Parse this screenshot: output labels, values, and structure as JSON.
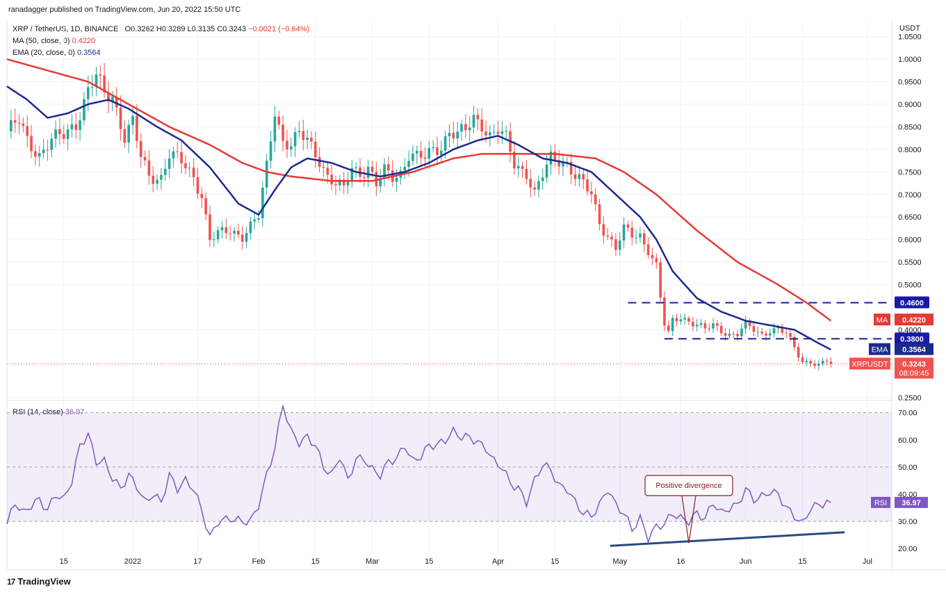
{
  "header": {
    "publisher": "ranadagger published on TradingView.com, Jun 20, 2022 15:50 UTC",
    "symbol": "XRP / TetherUS, 1D, BINANCE",
    "ohlc": {
      "o": "O0.3262",
      "h": "H0.3289",
      "l": "L0.3135",
      "c": "C0.3243",
      "chg": "−0.0021 (−0.64%)"
    },
    "ma_label": "MA (50, close, 0)",
    "ma_value": "0.4220",
    "ema_label": "EMA (20, close, 0)",
    "ema_value": "0.3564",
    "rsi_label": "RSI (14, close)",
    "rsi_value": "36.97"
  },
  "brand": {
    "name": "TradingView",
    "icon": "tradingview-logo-icon"
  },
  "colors": {
    "up": "#26a69a",
    "down": "#ef5350",
    "ma": "#e53935",
    "ema": "#1a2a8c",
    "rsi": "#7e57c2",
    "rsi_band": "rgba(126,87,194,0.10)",
    "level_line": "#1a1aa8",
    "trend_line": "#2a4a7f",
    "price_dot": "#e53935",
    "annotation": "#8b1a1a"
  },
  "chart_data": [
    {
      "type": "candlestick",
      "title": "XRP / TetherUS, 1D, BINANCE",
      "currency_label": "USDT",
      "ylim": [
        0.245,
        1.085
      ],
      "y_ticks": [
        "1.0500",
        "1.0000",
        "0.9500",
        "0.9000",
        "0.8500",
        "0.8000",
        "0.7500",
        "0.7000",
        "0.6500",
        "0.6000",
        "0.5500",
        "0.5000",
        "0.4000",
        "0.2500"
      ],
      "x_tick_labels": [
        {
          "label": "15",
          "day": 14
        },
        {
          "label": "2022",
          "day": 31
        },
        {
          "label": "17",
          "day": 47
        },
        {
          "label": "Feb",
          "day": 62
        },
        {
          "label": "15",
          "day": 76
        },
        {
          "label": "Mar",
          "day": 90
        },
        {
          "label": "15",
          "day": 104
        },
        {
          "label": "Apr",
          "day": 121
        },
        {
          "label": "15",
          "day": 135
        },
        {
          "label": "May",
          "day": 151
        },
        {
          "label": "16",
          "day": 166
        },
        {
          "label": "Jun",
          "day": 182
        },
        {
          "label": "15",
          "day": 196
        },
        {
          "label": "Jul",
          "day": 212
        }
      ],
      "x_range_days": [
        0,
        218
      ],
      "anchors": {
        "close": [
          [
            0,
            0.84
          ],
          [
            3,
            0.86
          ],
          [
            5,
            0.82
          ],
          [
            8,
            0.79
          ],
          [
            11,
            0.82
          ],
          [
            14,
            0.83
          ],
          [
            17,
            0.86
          ],
          [
            20,
            0.93
          ],
          [
            22,
            0.96
          ],
          [
            24,
            0.92
          ],
          [
            26,
            0.92
          ],
          [
            29,
            0.83
          ],
          [
            31,
            0.86
          ],
          [
            33,
            0.78
          ],
          [
            35,
            0.74
          ],
          [
            38,
            0.74
          ],
          [
            40,
            0.79
          ],
          [
            43,
            0.77
          ],
          [
            46,
            0.74
          ],
          [
            48,
            0.7
          ],
          [
            50,
            0.6
          ],
          [
            52,
            0.61
          ],
          [
            55,
            0.62
          ],
          [
            58,
            0.61
          ],
          [
            60,
            0.63
          ],
          [
            62,
            0.65
          ],
          [
            64,
            0.76
          ],
          [
            66,
            0.89
          ],
          [
            68,
            0.82
          ],
          [
            70,
            0.81
          ],
          [
            72,
            0.83
          ],
          [
            74,
            0.82
          ],
          [
            77,
            0.78
          ],
          [
            79,
            0.74
          ],
          [
            81,
            0.72
          ],
          [
            83,
            0.71
          ],
          [
            85,
            0.76
          ],
          [
            87,
            0.75
          ],
          [
            89,
            0.76
          ],
          [
            91,
            0.72
          ],
          [
            93,
            0.75
          ],
          [
            95,
            0.74
          ],
          [
            97,
            0.75
          ],
          [
            99,
            0.79
          ],
          [
            101,
            0.78
          ],
          [
            103,
            0.78
          ],
          [
            105,
            0.8
          ],
          [
            107,
            0.81
          ],
          [
            109,
            0.84
          ],
          [
            111,
            0.83
          ],
          [
            113,
            0.84
          ],
          [
            115,
            0.87
          ],
          [
            117,
            0.86
          ],
          [
            119,
            0.83
          ],
          [
            121,
            0.84
          ],
          [
            123,
            0.82
          ],
          [
            125,
            0.77
          ],
          [
            128,
            0.75
          ],
          [
            130,
            0.7
          ],
          [
            132,
            0.74
          ],
          [
            134,
            0.78
          ],
          [
            136,
            0.78
          ],
          [
            138,
            0.77
          ],
          [
            140,
            0.74
          ],
          [
            142,
            0.72
          ],
          [
            144,
            0.7
          ],
          [
            146,
            0.64
          ],
          [
            148,
            0.61
          ],
          [
            150,
            0.58
          ],
          [
            152,
            0.62
          ],
          [
            154,
            0.61
          ],
          [
            156,
            0.61
          ],
          [
            158,
            0.58
          ],
          [
            160,
            0.54
          ],
          [
            161,
            0.47
          ],
          [
            162,
            0.41
          ],
          [
            163,
            0.39
          ],
          [
            164,
            0.42
          ],
          [
            166,
            0.43
          ],
          [
            168,
            0.42
          ],
          [
            170,
            0.41
          ],
          [
            172,
            0.4
          ],
          [
            174,
            0.41
          ],
          [
            176,
            0.4
          ],
          [
            178,
            0.39
          ],
          [
            180,
            0.39
          ],
          [
            182,
            0.41
          ],
          [
            184,
            0.4
          ],
          [
            186,
            0.39
          ],
          [
            188,
            0.4
          ],
          [
            190,
            0.4
          ],
          [
            192,
            0.39
          ],
          [
            194,
            0.36
          ],
          [
            196,
            0.33
          ],
          [
            198,
            0.33
          ],
          [
            200,
            0.32
          ],
          [
            202,
            0.33
          ],
          [
            203,
            0.324
          ]
        ],
        "ma50": [
          [
            0,
            1.0
          ],
          [
            20,
            0.95
          ],
          [
            30,
            0.9
          ],
          [
            40,
            0.85
          ],
          [
            50,
            0.81
          ],
          [
            58,
            0.77
          ],
          [
            64,
            0.75
          ],
          [
            70,
            0.74
          ],
          [
            80,
            0.73
          ],
          [
            90,
            0.73
          ],
          [
            100,
            0.75
          ],
          [
            110,
            0.78
          ],
          [
            117,
            0.79
          ],
          [
            125,
            0.79
          ],
          [
            135,
            0.79
          ],
          [
            145,
            0.78
          ],
          [
            152,
            0.75
          ],
          [
            160,
            0.7
          ],
          [
            170,
            0.62
          ],
          [
            180,
            0.55
          ],
          [
            190,
            0.5
          ],
          [
            197,
            0.46
          ],
          [
            203,
            0.42
          ]
        ],
        "ema20": [
          [
            0,
            0.94
          ],
          [
            5,
            0.91
          ],
          [
            10,
            0.87
          ],
          [
            15,
            0.88
          ],
          [
            20,
            0.9
          ],
          [
            25,
            0.91
          ],
          [
            30,
            0.89
          ],
          [
            37,
            0.85
          ],
          [
            43,
            0.82
          ],
          [
            50,
            0.76
          ],
          [
            57,
            0.68
          ],
          [
            62,
            0.655
          ],
          [
            66,
            0.71
          ],
          [
            70,
            0.76
          ],
          [
            74,
            0.78
          ],
          [
            80,
            0.77
          ],
          [
            86,
            0.75
          ],
          [
            92,
            0.74
          ],
          [
            98,
            0.75
          ],
          [
            104,
            0.77
          ],
          [
            110,
            0.8
          ],
          [
            116,
            0.82
          ],
          [
            121,
            0.83
          ],
          [
            126,
            0.81
          ],
          [
            132,
            0.78
          ],
          [
            138,
            0.77
          ],
          [
            144,
            0.75
          ],
          [
            150,
            0.7
          ],
          [
            156,
            0.65
          ],
          [
            160,
            0.6
          ],
          [
            164,
            0.53
          ],
          [
            170,
            0.47
          ],
          [
            176,
            0.44
          ],
          [
            182,
            0.42
          ],
          [
            188,
            0.41
          ],
          [
            194,
            0.4
          ],
          [
            200,
            0.37
          ],
          [
            203,
            0.356
          ]
        ]
      },
      "levels": [
        {
          "label": "0.4600",
          "value": 0.46,
          "from_day": 153
        },
        {
          "label": "0.3800",
          "value": 0.38,
          "from_day": 162
        }
      ],
      "price_tags": [
        {
          "label": "MA",
          "value_label": "0.4220",
          "value": 0.422,
          "color": "#e53935"
        },
        {
          "label": "EMA",
          "value_label": "0.3564",
          "value": 0.3564,
          "color": "#1a2a8c"
        },
        {
          "label": "XRPUSDT",
          "value_label": "0.3243",
          "sub": "08:09:45",
          "value": 0.3243,
          "color": "#ef5350"
        }
      ]
    },
    {
      "type": "line",
      "title": "RSI (14, close)",
      "ylim": [
        18,
        74
      ],
      "y_ticks": [
        "70.00",
        "60.00",
        "50.00",
        "40.00",
        "30.00",
        "20.00"
      ],
      "band": [
        30,
        70
      ],
      "mid_line": 50,
      "series": [
        {
          "name": "RSI (14, close)",
          "last_label": "36.97",
          "points": [
            [
              0,
              29
            ],
            [
              2,
              37
            ],
            [
              4,
              33
            ],
            [
              6,
              36
            ],
            [
              8,
              38
            ],
            [
              10,
              34
            ],
            [
              12,
              40
            ],
            [
              14,
              38
            ],
            [
              16,
              45
            ],
            [
              18,
              58
            ],
            [
              20,
              62
            ],
            [
              22,
              52
            ],
            [
              24,
              52
            ],
            [
              26,
              46
            ],
            [
              28,
              42
            ],
            [
              30,
              47
            ],
            [
              32,
              43
            ],
            [
              34,
              37
            ],
            [
              36,
              40
            ],
            [
              38,
              37
            ],
            [
              40,
              47
            ],
            [
              42,
              42
            ],
            [
              44,
              45
            ],
            [
              46,
              42
            ],
            [
              48,
              34
            ],
            [
              50,
              24
            ],
            [
              52,
              30
            ],
            [
              55,
              31
            ],
            [
              58,
              30
            ],
            [
              60,
              30
            ],
            [
              62,
              36
            ],
            [
              64,
              47
            ],
            [
              66,
              57
            ],
            [
              68,
              73
            ],
            [
              70,
              63
            ],
            [
              72,
              59
            ],
            [
              74,
              61
            ],
            [
              76,
              58
            ],
            [
              78,
              50
            ],
            [
              80,
              47
            ],
            [
              82,
              54
            ],
            [
              84,
              45
            ],
            [
              86,
              53
            ],
            [
              88,
              53
            ],
            [
              90,
              49
            ],
            [
              92,
              47
            ],
            [
              94,
              52
            ],
            [
              96,
              53
            ],
            [
              98,
              58
            ],
            [
              100,
              52
            ],
            [
              102,
              54
            ],
            [
              104,
              58
            ],
            [
              106,
              58
            ],
            [
              108,
              60
            ],
            [
              110,
              63
            ],
            [
              112,
              61
            ],
            [
              114,
              61
            ],
            [
              116,
              59
            ],
            [
              118,
              57
            ],
            [
              120,
              52
            ],
            [
              122,
              50
            ],
            [
              124,
              44
            ],
            [
              126,
              42
            ],
            [
              128,
              37
            ],
            [
              130,
              45
            ],
            [
              132,
              51
            ],
            [
              134,
              49
            ],
            [
              136,
              43
            ],
            [
              138,
              42
            ],
            [
              140,
              37
            ],
            [
              142,
              33
            ],
            [
              144,
              32
            ],
            [
              146,
              36
            ],
            [
              148,
              42
            ],
            [
              150,
              36
            ],
            [
              152,
              33
            ],
            [
              154,
              27
            ],
            [
              156,
              31
            ],
            [
              158,
              24
            ],
            [
              160,
              28
            ],
            [
              162,
              29
            ],
            [
              164,
              33
            ],
            [
              166,
              31
            ],
            [
              168,
              30
            ],
            [
              170,
              33
            ],
            [
              172,
              31
            ],
            [
              174,
              37
            ],
            [
              176,
              33
            ],
            [
              178,
              35
            ],
            [
              180,
              36
            ],
            [
              182,
              42
            ],
            [
              184,
              38
            ],
            [
              186,
              39
            ],
            [
              188,
              41
            ],
            [
              190,
              40
            ],
            [
              192,
              35
            ],
            [
              194,
              32
            ],
            [
              196,
              29
            ],
            [
              198,
              35
            ],
            [
              200,
              36
            ],
            [
              202,
              37
            ],
            [
              203,
              36.97
            ]
          ]
        }
      ],
      "trend_line": [
        [
          150,
          21
        ],
        [
          205,
          26
        ]
      ],
      "annotation": {
        "text": "Positive divergence",
        "day": 168,
        "value": 36
      }
    }
  ]
}
